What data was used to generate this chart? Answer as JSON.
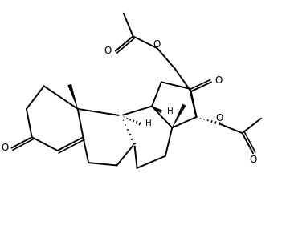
{
  "bg_color": "#ffffff",
  "line_color": "#000000",
  "lw": 1.4,
  "fig_width": 3.56,
  "fig_height": 2.92,
  "dpi": 100,
  "xlim": [
    0,
    10.5
  ],
  "ylim": [
    0,
    8.5
  ]
}
